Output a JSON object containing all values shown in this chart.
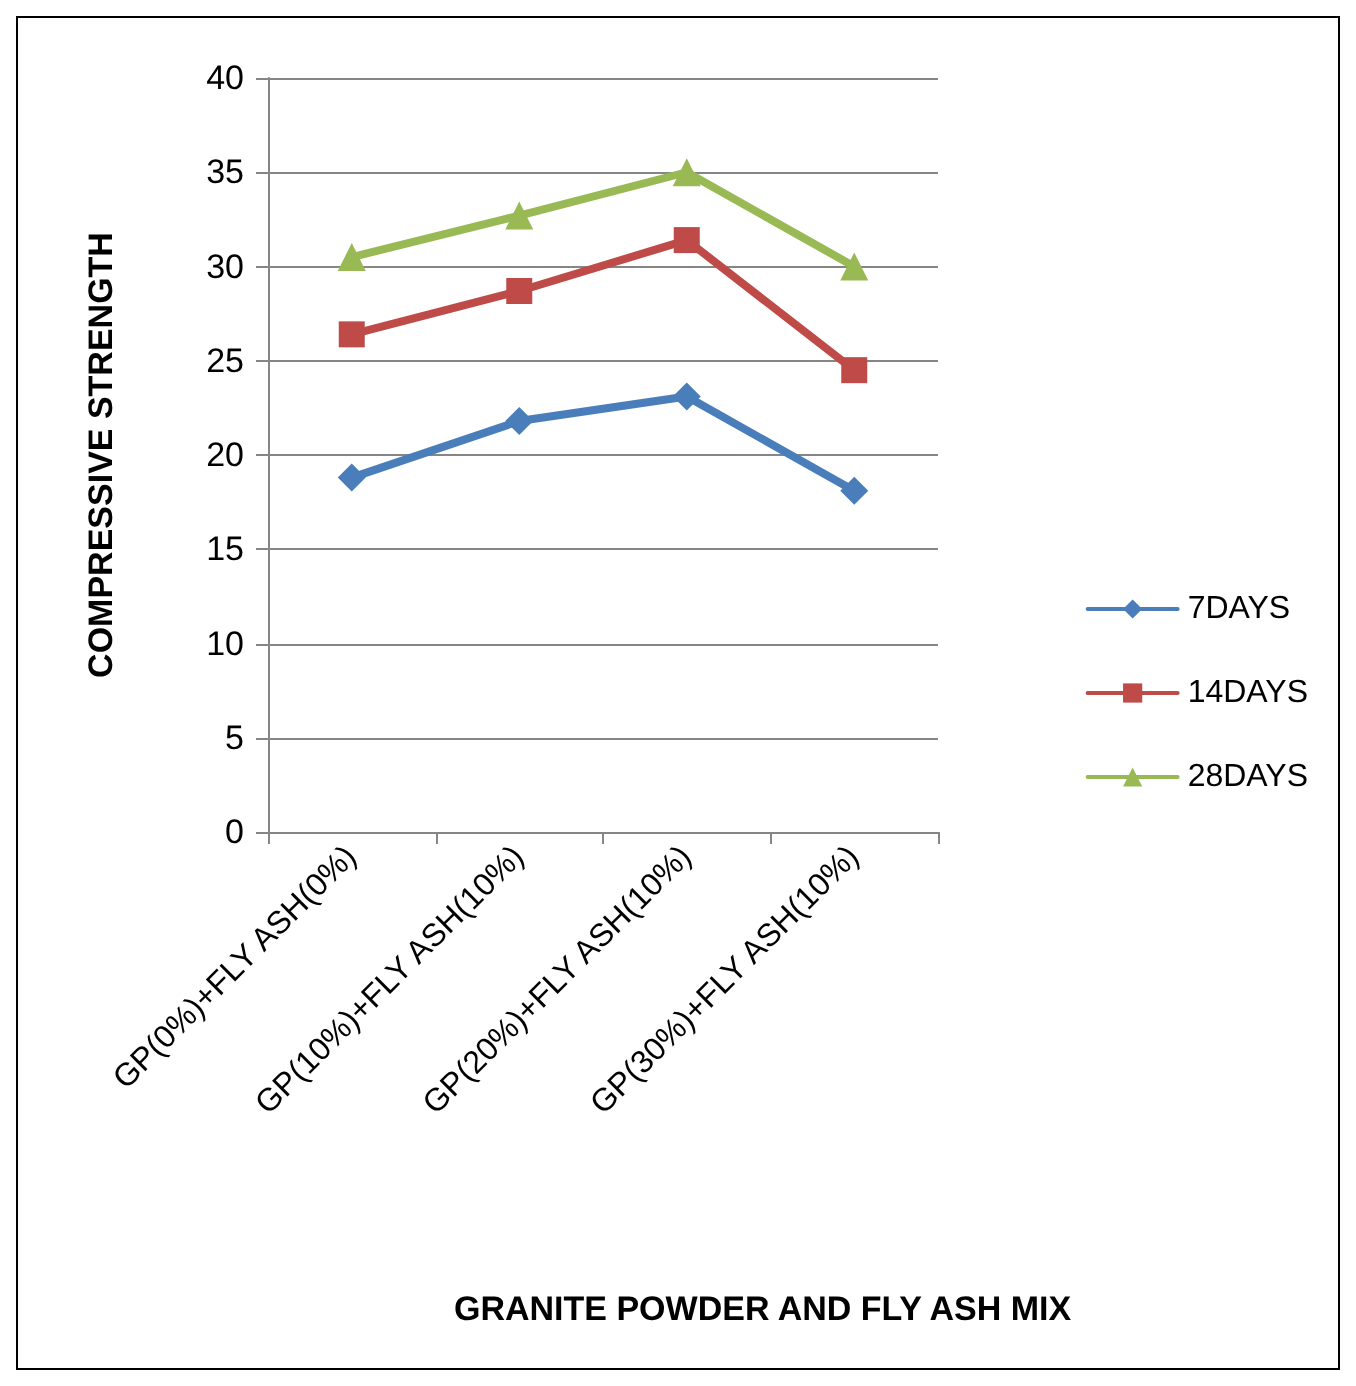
{
  "chart_data": {
    "type": "line",
    "xlabel": "GRANITE POWDER AND FLY ASH MIX",
    "ylabel": "COMPRESSIVE STRENGTH",
    "categories": [
      "GP(0%)+FLY ASH(0%)",
      "GP(10%)+FLY ASH(10%)",
      "GP(20%)+FLY ASH(10%)",
      "GP(30%)+FLY ASH(10%)"
    ],
    "series": [
      {
        "name": "7DAYS",
        "color": "#4a7ebb",
        "marker": "diamond",
        "values": [
          18.8,
          21.8,
          23.1,
          18.1
        ]
      },
      {
        "name": "14DAYS",
        "color": "#be4b48",
        "marker": "square",
        "values": [
          26.4,
          28.7,
          31.4,
          24.5
        ]
      },
      {
        "name": "28DAYS",
        "color": "#98b954",
        "marker": "triangle",
        "values": [
          30.5,
          32.7,
          35.0,
          30.0
        ]
      }
    ],
    "ylim": [
      0,
      40
    ],
    "yticks": [
      0,
      5,
      10,
      15,
      20,
      25,
      30,
      35,
      40
    ],
    "grid": "y",
    "legend": "right",
    "line_style": "solid"
  }
}
